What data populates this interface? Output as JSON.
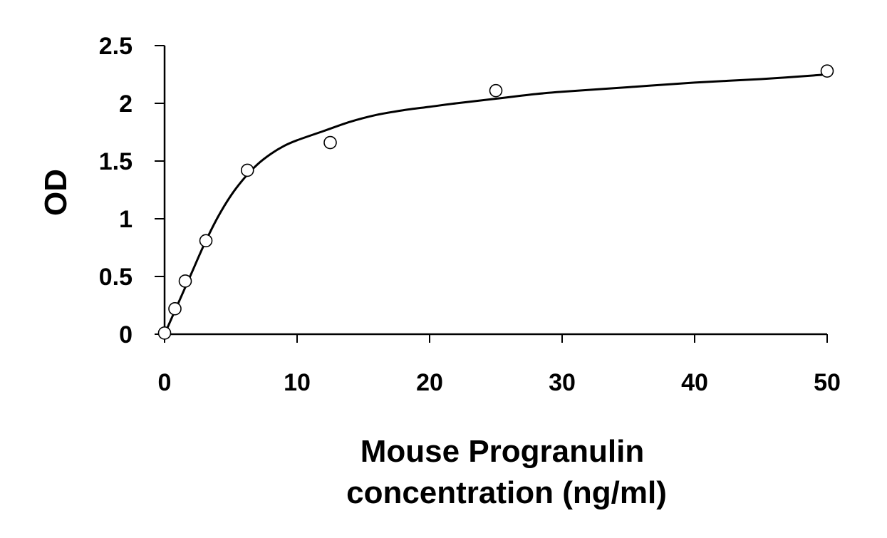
{
  "chart_data": {
    "type": "scatter",
    "title": "",
    "xlabel_lines": [
      "Mouse Progranulin",
      "concentration (ng/ml)"
    ],
    "ylabel": "OD",
    "xlim": [
      0,
      50
    ],
    "ylim": [
      0,
      2.5
    ],
    "x_ticks": [
      0,
      10,
      20,
      30,
      40,
      50
    ],
    "y_ticks": [
      0,
      0.5,
      1,
      1.5,
      2,
      2.5
    ],
    "x_tick_labels": [
      "0",
      "10",
      "20",
      "30",
      "40",
      "50"
    ],
    "y_tick_labels": [
      "0",
      "0.5",
      "1",
      "1.5",
      "2",
      "2.5"
    ],
    "grid": false,
    "legend": "none",
    "points": {
      "x": [
        0,
        0.78,
        1.56,
        3.12,
        6.25,
        12.5,
        25,
        50
      ],
      "y": [
        0.01,
        0.22,
        0.46,
        0.81,
        1.42,
        1.66,
        2.11,
        2.28
      ]
    },
    "fit_curve": {
      "style": "smooth-line",
      "color": "#000000",
      "x": [
        0,
        0.5,
        1,
        2,
        3,
        4,
        5,
        6,
        7,
        8,
        9,
        10,
        12,
        14,
        16,
        18,
        20,
        22,
        25,
        28,
        30,
        35,
        40,
        45,
        50
      ],
      "y": [
        0,
        0.13,
        0.26,
        0.52,
        0.78,
        1.01,
        1.2,
        1.35,
        1.47,
        1.56,
        1.63,
        1.68,
        1.76,
        1.84,
        1.9,
        1.94,
        1.97,
        2.0,
        2.04,
        2.08,
        2.1,
        2.14,
        2.18,
        2.21,
        2.25
      ]
    },
    "marker": {
      "shape": "open-circle",
      "stroke": "#000000",
      "fill": "#ffffff"
    }
  }
}
